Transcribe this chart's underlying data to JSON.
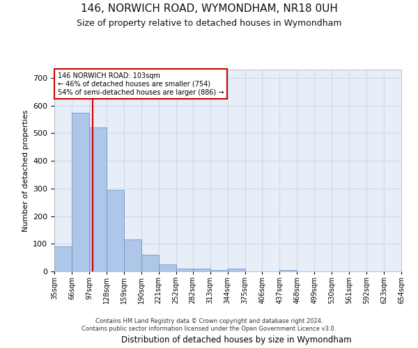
{
  "title": "146, NORWICH ROAD, WYMONDHAM, NR18 0UH",
  "subtitle": "Size of property relative to detached houses in Wymondham",
  "xlabel": "Distribution of detached houses by size in Wymondham",
  "ylabel": "Number of detached properties",
  "footer1": "Contains HM Land Registry data © Crown copyright and database right 2024.",
  "footer2": "Contains public sector information licensed under the Open Government Licence v3.0.",
  "annotation_line1": "146 NORWICH ROAD: 103sqm",
  "annotation_line2": "← 46% of detached houses are smaller (754)",
  "annotation_line3": "54% of semi-detached houses are larger (886) →",
  "bar_color": "#aec6e8",
  "bar_edge_color": "#5a8fc4",
  "vline_color": "#cc0000",
  "vline_x": 103,
  "bin_edges": [
    35,
    66,
    97,
    128,
    159,
    190,
    221,
    252,
    282,
    313,
    344,
    375,
    406,
    437,
    468,
    499,
    530,
    561,
    592,
    623,
    654
  ],
  "bin_labels": [
    "35sqm",
    "66sqm",
    "97sqm",
    "128sqm",
    "159sqm",
    "190sqm",
    "221sqm",
    "252sqm",
    "282sqm",
    "313sqm",
    "344sqm",
    "375sqm",
    "406sqm",
    "437sqm",
    "468sqm",
    "499sqm",
    "530sqm",
    "561sqm",
    "592sqm",
    "623sqm",
    "654sqm"
  ],
  "bar_heights": [
    90,
    575,
    520,
    295,
    115,
    60,
    25,
    10,
    10,
    5,
    10,
    0,
    0,
    5,
    0,
    0,
    0,
    0,
    0,
    0
  ],
  "ylim": [
    0,
    730
  ],
  "yticks": [
    0,
    100,
    200,
    300,
    400,
    500,
    600,
    700
  ],
  "grid_color": "#d0d8e8",
  "background_color": "#e8eef8",
  "fig_background": "#ffffff",
  "box_color": "#cc0000",
  "title_fontsize": 11,
  "subtitle_fontsize": 9
}
